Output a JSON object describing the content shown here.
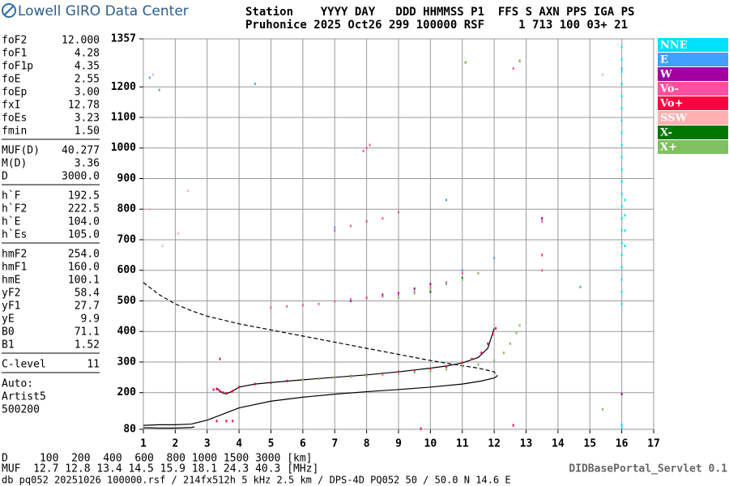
{
  "header": {
    "logo": "Lowell GIRO Data Center",
    "line1": "Station    YYYY DAY   DDD HHMMSS P1  FFS S AXN PPS IGA PS",
    "line2": "Pruhonice 2025 Oct26 299 100000 RSF     1 713 100 03+ 21"
  },
  "parameters": [
    [
      [
        "foF2",
        "12.000"
      ],
      [
        "foF1",
        "4.28"
      ],
      [
        "foF1p",
        "4.35"
      ],
      [
        "foE",
        "2.55"
      ],
      [
        "foEp",
        "3.00"
      ],
      [
        "fxI",
        "12.78"
      ],
      [
        "foEs",
        "3.23"
      ],
      [
        "fmin",
        "1.50"
      ]
    ],
    [
      [
        "MUF(D)",
        "40.277"
      ],
      [
        "M(D)",
        "3.36"
      ],
      [
        "D",
        "3000.0"
      ]
    ],
    [
      [
        "h`F",
        "192.5"
      ],
      [
        "h`F2",
        "222.5"
      ],
      [
        "h`E",
        "104.0"
      ],
      [
        "h`Es",
        "105.0"
      ]
    ],
    [
      [
        "hmF2",
        "254.0"
      ],
      [
        "hmF1",
        "160.0"
      ],
      [
        "hmE",
        "100.1"
      ],
      [
        "yF2",
        "58.4"
      ],
      [
        "yF1",
        "27.7"
      ],
      [
        "yE",
        "9.9"
      ],
      [
        "B0",
        "71.1"
      ],
      [
        "B1",
        "1.52"
      ]
    ],
    [
      [
        "C-level",
        "11"
      ]
    ]
  ],
  "auto": [
    "Auto:",
    "Artist5",
    "500200"
  ],
  "footer": {
    "d_row": "D     100  200  400  600  800 1000 1500 3000 [km]",
    "muf_row": "MUF  12.7 12.8 13.4 14.5 15.9 18.1 24.3 40.3 [MHz]",
    "file": "db pq052 20251026 100000.rsf / 214fx512h 5 kHz 2.5 km / DPS-4D PQ052 50 / 50.0 N 14.6 E",
    "servlet": "DIDBasePortal_Servlet 0.1"
  },
  "chart_data": {
    "type": "scatter",
    "grid": true,
    "xlim": [
      1,
      17
    ],
    "xticks": [
      1,
      2,
      3,
      4,
      5,
      6,
      7,
      8,
      9,
      10,
      11,
      12,
      13,
      14,
      15,
      16,
      17
    ],
    "ylim": [
      80,
      1357
    ],
    "yticks": [
      80,
      200,
      300,
      400,
      500,
      600,
      700,
      800,
      900,
      1000,
      1100,
      1200,
      1357
    ],
    "series": [
      {
        "name": "NNE",
        "color": "#00e0ff",
        "x": [
          16,
          16,
          16,
          16,
          16,
          16,
          16,
          16,
          16,
          16,
          16,
          16,
          16,
          16,
          16,
          16,
          16,
          16,
          16,
          16,
          16,
          16,
          16.1,
          16.1,
          16.1,
          16.1,
          16,
          16
        ],
        "y": [
          490,
          530,
          570,
          610,
          650,
          690,
          730,
          770,
          810,
          850,
          890,
          930,
          970,
          1010,
          1050,
          1090,
          1130,
          1170,
          1210,
          1250,
          1290,
          1330,
          680,
          730,
          780,
          830,
          95,
          85
        ]
      },
      {
        "name": "E",
        "color": "#40a0ff",
        "x": [
          1.2,
          1.5,
          4.5,
          7,
          8,
          10.5,
          11,
          12,
          14.7,
          16
        ],
        "y": [
          1230,
          1190,
          1210,
          740,
          760,
          830,
          600,
          640,
          545,
          1260
        ]
      },
      {
        "name": "W",
        "color": "#a000a0",
        "x": [
          7.5,
          8,
          8.5,
          9,
          9.5,
          10,
          13.5,
          13.5,
          16
        ],
        "y": [
          500,
          510,
          520,
          525,
          540,
          555,
          650,
          770,
          195
        ]
      },
      {
        "name": "Vo-",
        "color": "#ff50a0",
        "x": [
          5,
          5.5,
          6,
          6.5,
          7,
          7.5,
          8,
          8.5,
          9,
          9.5,
          10,
          10.5,
          11,
          7,
          7.5,
          8,
          8.5,
          9,
          7.9,
          8,
          8.1,
          13.5,
          13.5,
          13.5,
          12.6
        ],
        "y": [
          478,
          482,
          486,
          490,
          498,
          505,
          510,
          515,
          520,
          530,
          545,
          560,
          590,
          730,
          745,
          760,
          770,
          790,
          990,
          1000,
          1010,
          600,
          650,
          760,
          1260
        ]
      },
      {
        "name": "Vo+",
        "color": "#ff0040",
        "x": [
          3.2,
          3.3,
          3.4,
          3.5,
          3.6,
          3.8,
          4,
          4.5,
          5,
          5.5,
          6,
          6.5,
          7,
          7.5,
          8,
          8.5,
          9,
          9.5,
          10,
          10.5,
          11,
          11.3,
          11.6,
          11.8,
          11.95,
          12.05,
          3.3,
          3.6,
          3.8,
          3.4,
          9.7,
          12.6
        ],
        "y": [
          210,
          212,
          205,
          200,
          198,
          205,
          218,
          228,
          232,
          238,
          242,
          246,
          250,
          254,
          258,
          262,
          268,
          272,
          278,
          285,
          298,
          310,
          330,
          360,
          390,
          410,
          107,
          107,
          107,
          310,
          82,
          93
        ]
      },
      {
        "name": "SSW",
        "color": "#ffb0b0",
        "x": [
          1.2,
          1.6,
          2.1,
          2.4,
          1.3,
          15.4
        ],
        "y": [
          800,
          680,
          720,
          860,
          1240,
          1240
        ]
      },
      {
        "name": "X-",
        "color": "#007700",
        "x": [
          8,
          10,
          11,
          12.8,
          11.1
        ],
        "y": [
          255,
          530,
          575,
          1285,
          1280
        ]
      },
      {
        "name": "X+",
        "color": "#80c060",
        "x": [
          6,
          6.5,
          7,
          7.5,
          8,
          8.5,
          9,
          9.5,
          10,
          10.5,
          11,
          11.5,
          12,
          12.3,
          12.5,
          12.7,
          12.8,
          9,
          9.5,
          10,
          10.5,
          11,
          11.5,
          11.1,
          12.8,
          15.4
        ],
        "y": [
          242,
          246,
          250,
          252,
          255,
          258,
          262,
          266,
          270,
          276,
          285,
          292,
          305,
          330,
          360,
          395,
          420,
          510,
          525,
          540,
          555,
          570,
          590,
          1280,
          1285,
          145
        ]
      }
    ],
    "curves": [
      {
        "style": "solid",
        "x": [
          1,
          1.5,
          2,
          2.5,
          3,
          3.5,
          4,
          5,
          6,
          7,
          8,
          9,
          10,
          11,
          11.6,
          12,
          12.1
        ],
        "y": [
          93,
          95,
          95,
          97,
          110,
          130,
          150,
          172,
          185,
          195,
          203,
          210,
          218,
          228,
          238,
          248,
          255
        ]
      },
      {
        "style": "solid",
        "x": [
          3.3,
          3.4,
          3.5,
          3.6,
          3.8,
          4,
          4.5,
          5,
          6,
          7,
          8,
          9,
          10,
          10.5,
          11,
          11.5,
          11.8,
          12
        ],
        "y": [
          215,
          205,
          198,
          196,
          205,
          218,
          228,
          233,
          242,
          250,
          258,
          268,
          280,
          287,
          297,
          315,
          345,
          410
        ]
      },
      {
        "style": "solid",
        "x": [
          1,
          1.5,
          2,
          2.5,
          2.6
        ],
        "y": [
          85,
          84,
          84,
          86,
          88
        ]
      },
      {
        "style": "dashed",
        "x": [
          1,
          1.5,
          2,
          2.5,
          3,
          4,
          5,
          6,
          7,
          8,
          9,
          10,
          11,
          11.5,
          12,
          12.1
        ],
        "y": [
          560,
          520,
          490,
          468,
          450,
          425,
          405,
          385,
          365,
          345,
          325,
          305,
          288,
          280,
          268,
          255
        ]
      }
    ]
  }
}
